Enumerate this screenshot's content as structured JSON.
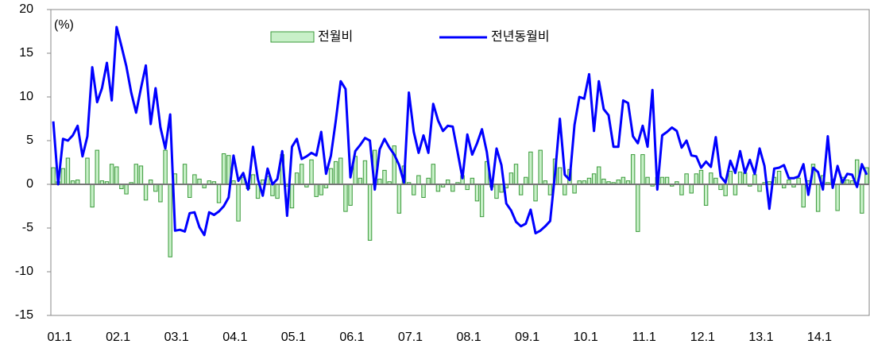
{
  "chart_data": {
    "type": "bar_line",
    "y_label": "(%)",
    "categories": [
      "01.1",
      null,
      null,
      null,
      null,
      null,
      null,
      null,
      null,
      null,
      null,
      null,
      "02.1",
      null,
      null,
      null,
      null,
      null,
      null,
      null,
      null,
      null,
      null,
      null,
      "03.1",
      null,
      null,
      null,
      null,
      null,
      null,
      null,
      null,
      null,
      null,
      null,
      "04.1",
      null,
      null,
      null,
      null,
      null,
      null,
      null,
      null,
      null,
      null,
      null,
      "05.1",
      null,
      null,
      null,
      null,
      null,
      null,
      null,
      null,
      null,
      null,
      null,
      "06.1",
      null,
      null,
      null,
      null,
      null,
      null,
      null,
      null,
      null,
      null,
      null,
      "07.1",
      null,
      null,
      null,
      null,
      null,
      null,
      null,
      null,
      null,
      null,
      null,
      "08.1",
      null,
      null,
      null,
      null,
      null,
      null,
      null,
      null,
      null,
      null,
      null,
      "09.1",
      null,
      null,
      null,
      null,
      null,
      null,
      null,
      null,
      null,
      null,
      null,
      "10.1",
      null,
      null,
      null,
      null,
      null,
      null,
      null,
      null,
      null,
      null,
      null,
      "11.1",
      null,
      null,
      null,
      null,
      null,
      null,
      null,
      null,
      null,
      null,
      null,
      "12.1",
      null,
      null,
      null,
      null,
      null,
      null,
      null,
      null,
      null,
      null,
      null,
      "13.1",
      null,
      null,
      null,
      null,
      null,
      null,
      null,
      null,
      null,
      null,
      null,
      "14.1",
      null,
      null,
      null,
      null,
      null,
      null,
      null,
      null,
      null,
      null,
      null
    ],
    "series": [
      {
        "name": "전월비",
        "kind": "bar",
        "color": "#c8f0c8",
        "edge": "#3a9a3a",
        "values": [
          1.9,
          0.3,
          1.8,
          3,
          0.4,
          0.5,
          0,
          3,
          -2.6,
          3.9,
          0.4,
          0.3,
          2.3,
          2,
          -0.5,
          -1.1,
          0.2,
          2.3,
          2.1,
          -1.8,
          0.5,
          -0.8,
          -2,
          3.9,
          -8.3,
          1.2,
          0,
          2.3,
          -1.5,
          1.1,
          0.6,
          -0.4,
          0.4,
          0.3,
          -2.1,
          3.5,
          3.3,
          0.4,
          -4.2,
          0.8,
          -0.5,
          1.1,
          -1.6,
          0.5,
          0.9,
          -1.3,
          -1.6,
          3.4,
          -0.2,
          -2.7,
          1.3,
          2.3,
          -0.3,
          2.8,
          -1.4,
          -1.2,
          -0.4,
          1.8,
          2.6,
          3,
          -3.1,
          -2.4,
          3.2,
          0.7,
          2.7,
          -6.4,
          3.9,
          0.6,
          1.6,
          0.3,
          4.4,
          -3.3,
          2.1,
          0.2,
          -1.2,
          1,
          -1.5,
          0.7,
          2.3,
          -0.8,
          -0.3,
          0.5,
          -0.8,
          0.2,
          1,
          -0.6,
          0.7,
          -1.9,
          -3.7,
          2.6,
          -0.3,
          -1.6,
          -0.9,
          -0.4,
          1.3,
          2.3,
          -1.2,
          0.8,
          3.7,
          -1.9,
          3.9,
          0.4,
          -1.2,
          2.9,
          1.9,
          -1.2,
          1.7,
          -1,
          0.4,
          0.4,
          0.7,
          1.2,
          2,
          0.6,
          0.3,
          0.2,
          0.5,
          0.8,
          0.4,
          3.4,
          -5.4,
          3.4,
          0.8,
          -0.2,
          0.8,
          0.8,
          0.8,
          -0.2,
          0.3,
          -1.2,
          1.2,
          -1,
          1.2,
          1.6,
          -2.4,
          1.3,
          0.7,
          -0.6,
          -1.3,
          1.5,
          -1.2,
          1.4,
          1.3,
          -0.2,
          1.1,
          -0.8,
          0.2,
          0.3,
          0.8,
          1.5,
          -0.4,
          0.5,
          -0.3,
          0.7,
          -2.6,
          0.4,
          2.3,
          -3.1,
          1,
          0.2,
          0.6,
          -3,
          0.8,
          0.5,
          0.4,
          2.8,
          -3.3,
          1.9
        ]
      },
      {
        "name": "전년동월비",
        "kind": "line",
        "color": "#0000ff",
        "values": [
          7.2,
          0,
          5.2,
          5,
          5.6,
          6.7,
          3.2,
          5.5,
          13.4,
          9.4,
          11,
          13.9,
          9.6,
          18,
          15.8,
          13.5,
          10.5,
          8.2,
          11,
          13.6,
          6.9,
          11,
          6.5,
          4.1,
          8,
          -5.3,
          -5.2,
          -5.4,
          -3.3,
          -3.2,
          -4.9,
          -5.8,
          -3.2,
          -3.5,
          -3.1,
          -2.5,
          -1.5,
          3.3,
          0.4,
          1.3,
          -0.6,
          4.3,
          0.6,
          -1.3,
          1.8,
          0,
          0.6,
          3.8,
          -3.6,
          4.3,
          5.2,
          2.9,
          3.2,
          3.6,
          3.3,
          6,
          1.2,
          3.3,
          7.3,
          11.8,
          10.9,
          0.8,
          3.8,
          4.5,
          5.3,
          5,
          -0.6,
          4,
          5.2,
          4.2,
          3.4,
          2.2,
          0.2,
          10.5,
          6,
          3.6,
          5.6,
          3.6,
          9.2,
          7.3,
          6.1,
          6.7,
          6.6,
          3.7,
          0.7,
          5.7,
          3.4,
          4.7,
          6.3,
          3.7,
          -0.6,
          4.1,
          2.2,
          -2.2,
          -3,
          -4.3,
          -4.8,
          -4.5,
          -2.9,
          -5.6,
          -5.3,
          -4.8,
          -4.2,
          1.2,
          7.5,
          1.1,
          0.5,
          6.8,
          10,
          9.8,
          12.6,
          6.1,
          11.8,
          8.6,
          7.9,
          4.3,
          4.3,
          9.6,
          9.3,
          5.5,
          4.7,
          6.7,
          4.3,
          10.8,
          -0.6,
          5.6,
          6,
          6.5,
          6.1,
          4.2,
          5,
          3.3,
          3.2,
          1.9,
          2.6,
          2,
          5.4,
          0.9,
          0.2,
          2.7,
          1.3,
          3.8,
          1.3,
          2.8,
          1.2,
          4.1,
          2.1,
          -2.8,
          1.8,
          1.9,
          2.2,
          0.7,
          0.7,
          0.9,
          2.3,
          -1.2,
          1.9,
          1.4,
          -0.6,
          5.5,
          -0.4,
          2.1,
          0.2,
          1.2,
          1.1,
          -0.3,
          2.3,
          1.1
        ]
      }
    ],
    "ylim": [
      -15,
      20
    ],
    "yticks": [
      -15,
      -10,
      -5,
      0,
      5,
      10,
      15,
      20
    ]
  }
}
